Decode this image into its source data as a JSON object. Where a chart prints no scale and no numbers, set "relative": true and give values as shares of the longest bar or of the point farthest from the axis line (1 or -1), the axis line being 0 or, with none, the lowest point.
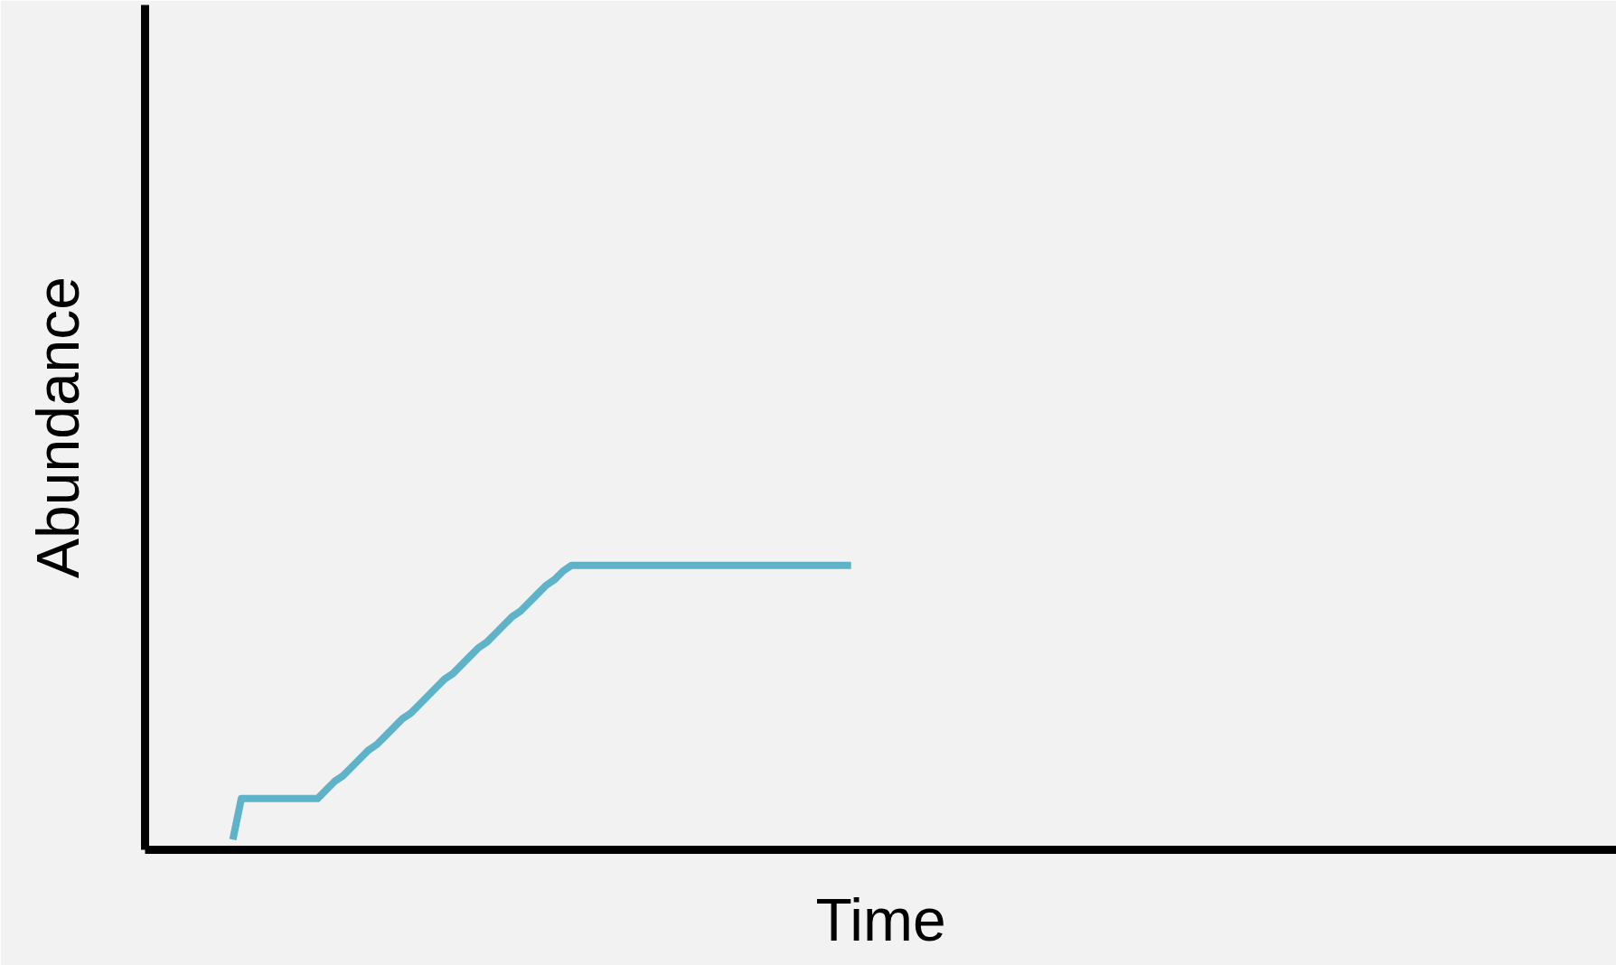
{
  "chart_data": {
    "type": "line",
    "xlabel": "Time",
    "ylabel": "Abundance",
    "relative": true,
    "categories": [
      null,
      null,
      null,
      null,
      null,
      null,
      null,
      null,
      null,
      null,
      null,
      null,
      null,
      null,
      null,
      null,
      null,
      null,
      null,
      null,
      null,
      null,
      null,
      null,
      null,
      null,
      null,
      null,
      null,
      null,
      null,
      null,
      null,
      null,
      null,
      null,
      null,
      null,
      null,
      null,
      null,
      null,
      null,
      null,
      null,
      null,
      null,
      null,
      null,
      null,
      null,
      null,
      null,
      null,
      null,
      null,
      null,
      null,
      null,
      null,
      null,
      null,
      null,
      null,
      null,
      null,
      null,
      null,
      null,
      null,
      null,
      null,
      null,
      null
    ],
    "series": [
      {
        "color": "#5fb3c9",
        "values": [
          0.036,
          0.18,
          0.18,
          0.18,
          0.18,
          0.18,
          0.18,
          0.18,
          0.18,
          0.18,
          0.18,
          0.21,
          0.24,
          0.26,
          0.29,
          0.32,
          0.35,
          0.37,
          0.4,
          0.43,
          0.46,
          0.48,
          0.51,
          0.54,
          0.57,
          0.6,
          0.62,
          0.65,
          0.68,
          0.71,
          0.73,
          0.76,
          0.79,
          0.82,
          0.84,
          0.87,
          0.9,
          0.93,
          0.95,
          0.98,
          1,
          1,
          1,
          1,
          1,
          1,
          1,
          1,
          1,
          1,
          1,
          1,
          1,
          1,
          1,
          1,
          1,
          1,
          1,
          1,
          1,
          1,
          1,
          1,
          1,
          1,
          1,
          1,
          1,
          1,
          1,
          1,
          1,
          1
        ]
      }
    ]
  }
}
